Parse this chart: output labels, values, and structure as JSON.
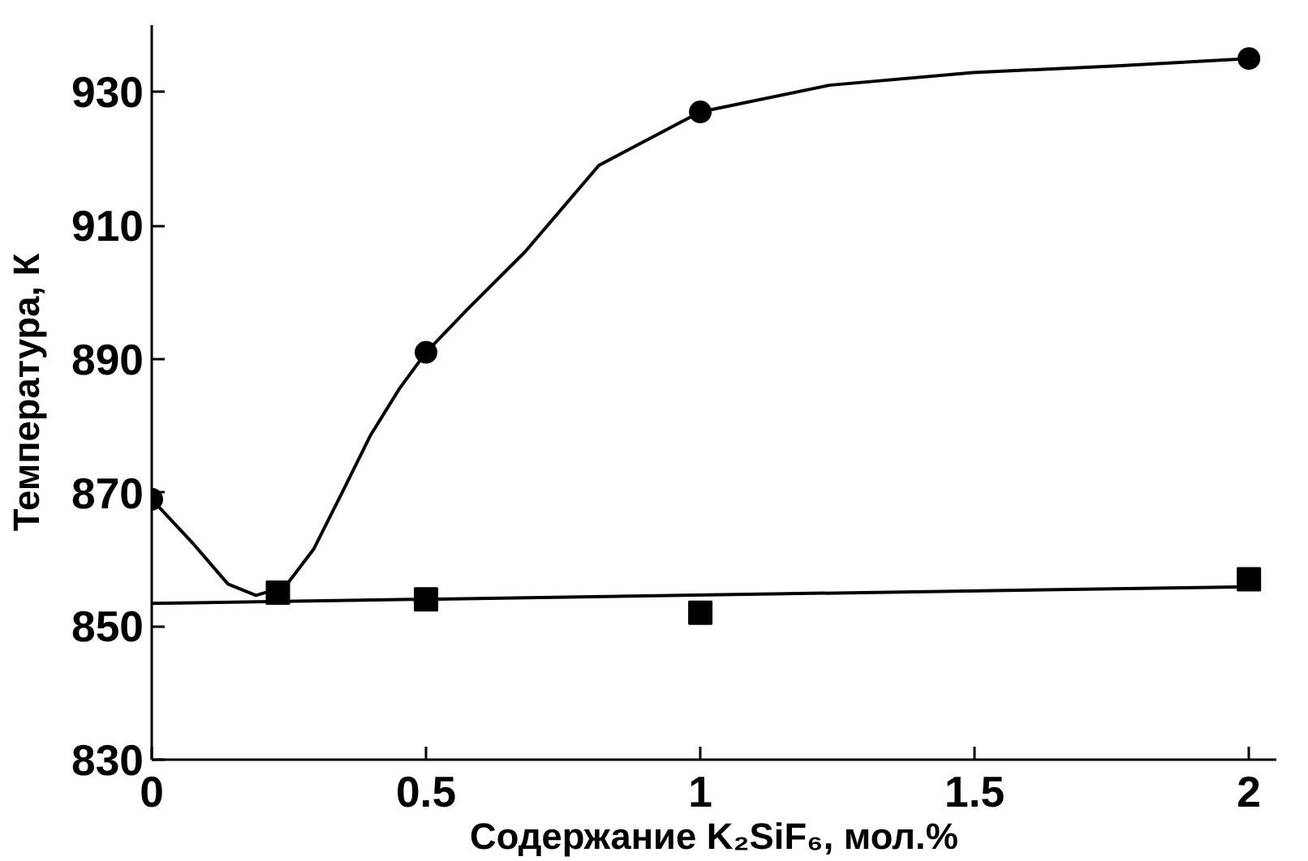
{
  "chart_data": {
    "type": "line",
    "xlabel": "Содержание K₂SiF₆, мол.%",
    "ylabel": "Температура, К",
    "xlim": [
      0,
      2.05
    ],
    "ylim": [
      830,
      940
    ],
    "xticks": [
      0,
      0.5,
      1,
      1.5,
      2
    ],
    "yticks": [
      830,
      850,
      870,
      890,
      910,
      930
    ],
    "grid": false,
    "series": [
      {
        "marker": "none",
        "color": "#000000",
        "x": [
          0,
          0.076,
          0.139,
          0.19,
          0.243,
          0.295,
          0.347,
          0.399,
          0.451,
          0.5,
          0.576,
          0.68,
          0.815,
          1,
          1.235,
          1.497,
          1.76,
          2
        ],
        "values": [
          869,
          862.3,
          856.3,
          854.6,
          855.9,
          861.5,
          870,
          878.6,
          885.5,
          891,
          897.5,
          906,
          919,
          927,
          931,
          932.9,
          933.9,
          935
        ]
      },
      {
        "type": "scatter",
        "marker": "circle",
        "color": "#000000",
        "x": [
          0,
          0.5,
          1,
          2
        ],
        "values": [
          869,
          891,
          927,
          935
        ]
      },
      {
        "marker": "none",
        "color": "#000000",
        "x": [
          0,
          2
        ],
        "values": [
          853.4,
          855.9
        ]
      },
      {
        "type": "scatter",
        "marker": "square",
        "color": "#000000",
        "x": [
          0.23,
          0.5,
          1,
          2
        ],
        "values": [
          855,
          854,
          852,
          857
        ]
      }
    ]
  }
}
